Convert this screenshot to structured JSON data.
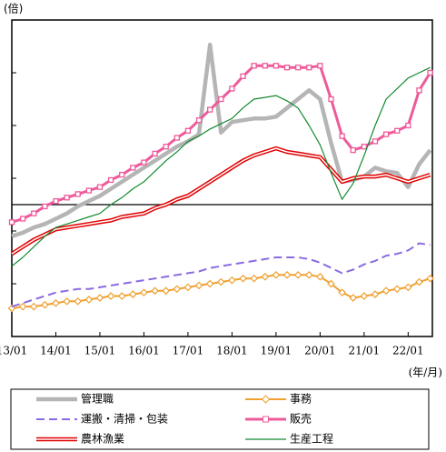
{
  "chart_data": {
    "type": "line",
    "y_unit": "(倍)",
    "x_unit": "(年/月)",
    "x": [
      2013,
      2013.25,
      2013.5,
      2013.75,
      2014,
      2014.25,
      2014.5,
      2014.75,
      2015,
      2015.25,
      2015.5,
      2015.75,
      2016,
      2016.25,
      2016.5,
      2016.75,
      2017,
      2017.25,
      2017.5,
      2017.75,
      2018,
      2018.25,
      2018.5,
      2018.75,
      2019,
      2019.25,
      2019.5,
      2019.75,
      2020,
      2020.25,
      2020.5,
      2020.75,
      2021,
      2021.25,
      2021.5,
      2021.75,
      2022,
      2022.25,
      2022.5
    ],
    "xlim": [
      2013,
      2022.55
    ],
    "xticks": [
      {
        "value": 2013,
        "label": "13/01"
      },
      {
        "value": 2014,
        "label": "14/01"
      },
      {
        "value": 2015,
        "label": "15/01"
      },
      {
        "value": 2016,
        "label": "16/01"
      },
      {
        "value": 2017,
        "label": "17/01"
      },
      {
        "value": 2018,
        "label": "18/01"
      },
      {
        "value": 2019,
        "label": "19/01"
      },
      {
        "value": 2020,
        "label": "20/01"
      },
      {
        "value": 2021,
        "label": "21/01"
      },
      {
        "value": 2022,
        "label": "22/01"
      }
    ],
    "ylim": [
      0.25,
      2.05
    ],
    "yticks": [
      0.55,
      0.85,
      1.15,
      1.45,
      1.75
    ],
    "hline": 1,
    "series": [
      {
        "name": "管理職",
        "color": "#b5b5b5",
        "line_style": "thick",
        "marker": "none",
        "values": [
          0.82,
          0.84,
          0.87,
          0.89,
          0.92,
          0.95,
          0.99,
          1.02,
          1.05,
          1.09,
          1.13,
          1.17,
          1.21,
          1.25,
          1.29,
          1.33,
          1.36,
          1.4,
          1.91,
          1.41,
          1.47,
          1.48,
          1.49,
          1.49,
          1.5,
          1.55,
          1.6,
          1.65,
          1.6,
          1.35,
          1.13,
          1.14,
          1.16,
          1.21,
          1.19,
          1.18,
          1.1,
          1.23,
          1.31
        ]
      },
      {
        "name": "事務",
        "color": "#f0a030",
        "line_style": "solid",
        "marker": "diamond",
        "values": [
          0.41,
          0.42,
          0.42,
          0.43,
          0.44,
          0.45,
          0.45,
          0.46,
          0.47,
          0.48,
          0.48,
          0.49,
          0.5,
          0.51,
          0.51,
          0.52,
          0.53,
          0.54,
          0.55,
          0.56,
          0.57,
          0.58,
          0.58,
          0.59,
          0.6,
          0.6,
          0.6,
          0.6,
          0.59,
          0.55,
          0.5,
          0.47,
          0.48,
          0.49,
          0.51,
          0.52,
          0.53,
          0.56,
          0.58
        ]
      },
      {
        "name": "運搬・清掃・包装",
        "color": "#8a6be0",
        "line_style": "dashed",
        "marker": "none",
        "values": [
          0.42,
          0.44,
          0.46,
          0.48,
          0.5,
          0.51,
          0.52,
          0.52,
          0.53,
          0.54,
          0.55,
          0.56,
          0.57,
          0.58,
          0.59,
          0.6,
          0.61,
          0.62,
          0.64,
          0.65,
          0.66,
          0.67,
          0.68,
          0.69,
          0.7,
          0.7,
          0.7,
          0.69,
          0.67,
          0.64,
          0.61,
          0.63,
          0.66,
          0.68,
          0.71,
          0.72,
          0.74,
          0.78,
          0.77
        ]
      },
      {
        "name": "販売",
        "color": "#ee5a9a",
        "line_style": "medium",
        "marker": "square",
        "values": [
          0.9,
          0.92,
          0.95,
          0.99,
          1.02,
          1.04,
          1.06,
          1.08,
          1.1,
          1.14,
          1.17,
          1.21,
          1.24,
          1.29,
          1.33,
          1.38,
          1.42,
          1.48,
          1.54,
          1.6,
          1.66,
          1.73,
          1.79,
          1.79,
          1.79,
          1.78,
          1.78,
          1.78,
          1.79,
          1.6,
          1.39,
          1.31,
          1.33,
          1.36,
          1.4,
          1.42,
          1.45,
          1.65,
          1.75
        ]
      },
      {
        "name": "農林漁業",
        "color": "#e00000",
        "line_style": "double",
        "marker": "none",
        "values": [
          0.72,
          0.76,
          0.8,
          0.83,
          0.86,
          0.87,
          0.88,
          0.89,
          0.9,
          0.91,
          0.93,
          0.94,
          0.95,
          0.98,
          1.0,
          1.03,
          1.05,
          1.09,
          1.13,
          1.17,
          1.21,
          1.25,
          1.28,
          1.3,
          1.32,
          1.3,
          1.29,
          1.28,
          1.27,
          1.2,
          1.13,
          1.15,
          1.16,
          1.16,
          1.17,
          1.15,
          1.13,
          1.15,
          1.17
        ]
      },
      {
        "name": "生産工程",
        "color": "#138a2e",
        "line_style": "thin",
        "marker": "none",
        "values": [
          0.65,
          0.7,
          0.76,
          0.82,
          0.87,
          0.89,
          0.91,
          0.93,
          0.95,
          1.0,
          1.04,
          1.09,
          1.13,
          1.19,
          1.25,
          1.3,
          1.36,
          1.39,
          1.43,
          1.46,
          1.49,
          1.55,
          1.6,
          1.61,
          1.62,
          1.59,
          1.55,
          1.45,
          1.34,
          1.18,
          1.03,
          1.12,
          1.28,
          1.45,
          1.6,
          1.66,
          1.72,
          1.75,
          1.78
        ]
      }
    ]
  }
}
